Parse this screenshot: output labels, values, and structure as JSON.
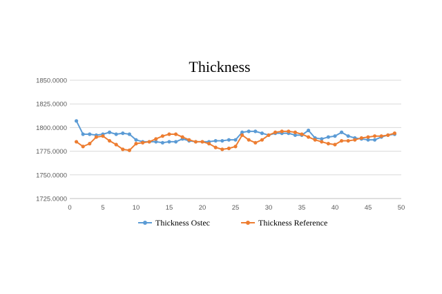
{
  "chart_data": {
    "type": "line",
    "title": "Thickness",
    "xlabel": "",
    "ylabel": "",
    "xlim": [
      0,
      50
    ],
    "ylim": [
      1725,
      1850
    ],
    "x_ticks": [
      0,
      5,
      10,
      15,
      20,
      25,
      30,
      35,
      40,
      45,
      50
    ],
    "x_tick_labels": [
      "0",
      "5",
      "10",
      "15",
      "20",
      "25",
      "30",
      "35",
      "40",
      "45",
      "50"
    ],
    "y_ticks": [
      1725,
      1750,
      1775,
      1800,
      1825,
      1850
    ],
    "y_tick_labels": [
      "1725.0000",
      "1750.0000",
      "1775.0000",
      "1800.0000",
      "1825.0000",
      "1850.0000"
    ],
    "grid": "horizontal",
    "legend_position": "bottom",
    "x": [
      1,
      2,
      3,
      4,
      5,
      6,
      7,
      8,
      9,
      10,
      11,
      12,
      13,
      14,
      15,
      16,
      17,
      18,
      19,
      20,
      21,
      22,
      23,
      24,
      25,
      26,
      27,
      28,
      29,
      30,
      31,
      32,
      33,
      34,
      35,
      36,
      37,
      38,
      39,
      40,
      41,
      42,
      43,
      44,
      45,
      46,
      47,
      48,
      49
    ],
    "series": [
      {
        "name": "Thickness Ostec",
        "color": "#5B9BD5",
        "values": [
          1807,
          1793,
          1793,
          1792,
          1793,
          1795,
          1793,
          1794,
          1793,
          1787,
          1785,
          1785,
          1785,
          1784,
          1785,
          1785,
          1788,
          1786,
          1785,
          1785,
          1785,
          1786,
          1786,
          1787,
          1787,
          1795,
          1796,
          1796,
          1794,
          1792,
          1794,
          1794,
          1794,
          1792,
          1792,
          1797,
          1789,
          1788,
          1790,
          1791,
          1795,
          1791,
          1789,
          1788,
          1787,
          1787,
          1790,
          1792,
          1793
        ]
      },
      {
        "name": "Thickness Reference",
        "color": "#ED7D31",
        "values": [
          1785,
          1780,
          1783,
          1790,
          1791,
          1786,
          1782,
          1777,
          1776,
          1783,
          1784,
          1785,
          1788,
          1791,
          1793,
          1793,
          1790,
          1787,
          1785,
          1785,
          1783,
          1779,
          1777,
          1778,
          1780,
          1792,
          1787,
          1784,
          1787,
          1792,
          1795,
          1796,
          1796,
          1795,
          1793,
          1790,
          1787,
          1785,
          1783,
          1782,
          1786,
          1786,
          1787,
          1789,
          1790,
          1791,
          1791,
          1792,
          1794
        ]
      }
    ]
  }
}
